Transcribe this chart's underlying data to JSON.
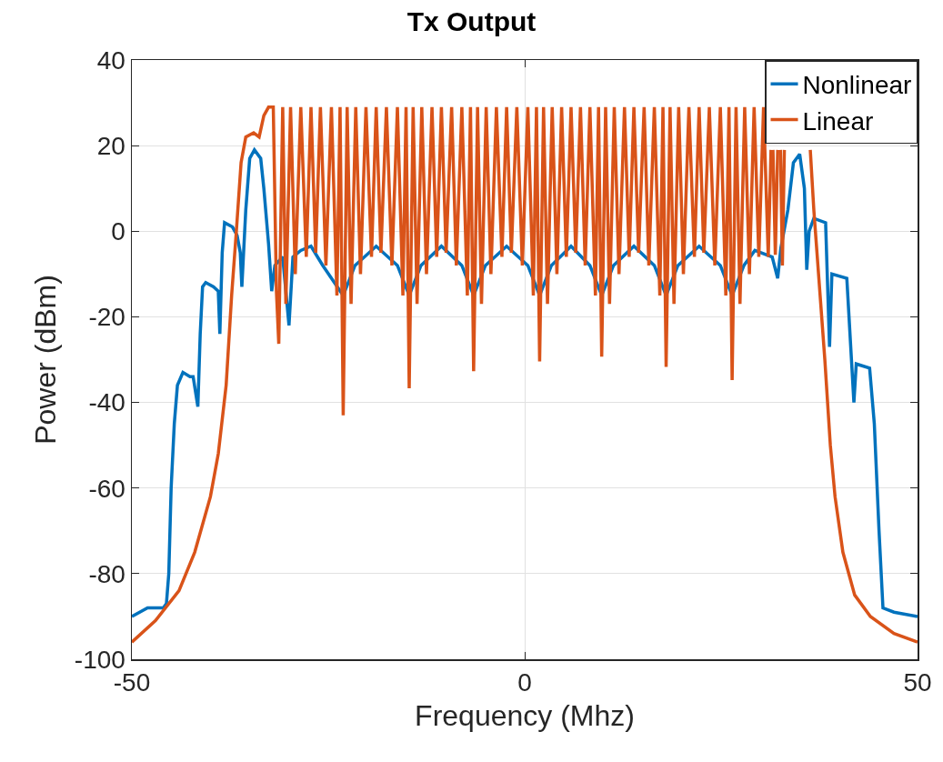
{
  "chart_data": {
    "type": "line",
    "title": "Tx Output",
    "xlabel": "Frequency (Mhz)",
    "ylabel": "Power (dBm)",
    "xlim": [
      -50,
      50
    ],
    "xticks": [
      -50,
      0,
      50
    ],
    "ylim": [
      -100,
      40
    ],
    "yticks": [
      -100,
      -80,
      -60,
      -40,
      -20,
      0,
      20,
      40
    ],
    "grid": true,
    "legend": "top right",
    "marker": "none",
    "line_style": "solid",
    "series": [
      {
        "name": "Nonlinear",
        "color": "#0072bd",
        "x": [
          -50,
          -48,
          -46,
          -45.6,
          -45.3,
          -45,
          -44.6,
          -44.2,
          -43.5,
          -42.6,
          -42.2,
          -41.6,
          -41.3,
          -41,
          -40.6,
          -39.6,
          -39,
          -38.8,
          -38.5,
          -38.2,
          -37.2,
          -36.6,
          -36.2,
          -36,
          -35.5,
          -35,
          -34.4,
          -33.6,
          -33.2,
          -32.6,
          -32.2,
          -31.8,
          -30.8,
          -30,
          -29.5,
          -28.5,
          -27.2,
          -25.7,
          -23.1,
          -21.6,
          -18.9,
          -16.2,
          -14.7,
          -13.2,
          -10.6,
          -8,
          -6.5,
          -5,
          -2.3,
          0.4,
          1.9,
          3.4,
          5.9,
          8.3,
          9.8,
          11.3,
          13.9,
          16.5,
          18,
          19.5,
          22.2,
          24.9,
          26.4,
          27.9,
          29.3,
          31.5,
          32.2,
          32.6,
          33.5,
          34.2,
          35,
          35.6,
          35.9,
          36.2,
          36.8,
          38.3,
          38.8,
          39.1,
          41,
          41.9,
          42.2,
          43.9,
          44.5,
          45.1,
          45.6,
          47,
          50
        ],
        "values": [
          -90,
          -88,
          -88,
          -87,
          -80,
          -60,
          -45,
          -36,
          -33,
          -34,
          -34,
          -41,
          -24,
          -13,
          -12,
          -13,
          -14,
          -24,
          -5,
          2,
          1,
          -1,
          -5,
          -13,
          5,
          17,
          19,
          17,
          10,
          -3,
          -14,
          -8,
          -6,
          -22,
          -6,
          -4.5,
          -3.5,
          -8,
          -15,
          -8,
          -3.5,
          -8,
          -15,
          -8,
          -3.5,
          -8,
          -15,
          -8,
          -3.5,
          -8,
          -15,
          -8,
          -3.5,
          -8,
          -15,
          -8,
          -3.5,
          -8,
          -15,
          -8,
          -3.5,
          -8,
          -15,
          -8,
          -4.5,
          -6,
          -11,
          -4,
          5,
          16,
          18,
          10,
          -9,
          0,
          3,
          2,
          -27,
          -10,
          -11,
          -40,
          -31,
          -32,
          -45,
          -70,
          -88,
          -89,
          -90
        ]
      },
      {
        "name": "Linear",
        "color": "#d95319",
        "x": [
          -50,
          -47,
          -44,
          -42,
          -40,
          -39,
          -38,
          -37.3,
          -36.7,
          -36.1,
          -35.5,
          -34.5,
          -33.8,
          -33.2,
          -32.6,
          -32,
          -31.6,
          -31.3,
          -30.8,
          -30.4,
          -29.8,
          -29.2,
          -28.5,
          -27.8,
          -27.2,
          -26.6,
          -26,
          -25.3,
          -24.6,
          -23.9,
          -23.5,
          -23.1,
          -22.6,
          -22.1,
          -21.5,
          -20.9,
          -20.2,
          -19.5,
          -18.9,
          -18.3,
          -17.6,
          -16.9,
          -16.2,
          -15.5,
          -15.1,
          -14.7,
          -14.2,
          -13.7,
          -13.1,
          -12.5,
          -11.8,
          -11.2,
          -10.6,
          -10,
          -9.3,
          -8.7,
          -8,
          -7.3,
          -6.9,
          -6.5,
          -6,
          -5.5,
          -4.9,
          -4.3,
          -3.6,
          -2.9,
          -2.3,
          -1.7,
          -1,
          -0.3,
          0.4,
          1.1,
          1.5,
          1.9,
          2.4,
          2.9,
          3.5,
          4.1,
          4.7,
          5.3,
          5.9,
          6.5,
          7.1,
          7.7,
          8.3,
          9,
          9.4,
          9.8,
          10.3,
          10.8,
          11.4,
          12,
          12.7,
          13.3,
          13.9,
          14.5,
          15.2,
          15.8,
          16.5,
          17.2,
          17.6,
          18,
          18.5,
          19,
          19.6,
          20.2,
          20.9,
          21.6,
          22.2,
          22.8,
          23.5,
          24.2,
          24.9,
          25.6,
          26,
          26.4,
          26.9,
          27.4,
          28,
          28.6,
          29.2,
          29.8,
          30.4,
          31,
          31.35,
          31.45,
          31.6,
          31.9,
          32.2,
          32.3,
          32.55,
          32.8,
          33.05,
          34,
          36.35,
          36.8,
          37.4,
          38.2,
          38.9,
          39.5,
          40.5,
          42,
          44,
          47,
          50
        ],
        "values": [
          -96,
          -91,
          -84,
          -75,
          -62,
          -52,
          -36,
          -15,
          0,
          16,
          22,
          23,
          22,
          27,
          29,
          29,
          -14,
          -26.3,
          29,
          -17,
          29,
          -10,
          29,
          -6,
          29,
          -5,
          29,
          -8,
          29,
          -15,
          29,
          -43,
          29,
          -17,
          29,
          -10,
          29,
          -6,
          29,
          -5,
          29,
          -8,
          29,
          -15,
          29,
          -36.7,
          29,
          -17,
          29,
          -10,
          29,
          -6,
          29,
          -5,
          29,
          -8,
          29,
          -15,
          29,
          -32.7,
          29,
          -17,
          29,
          -10,
          29,
          -6,
          29,
          -5,
          29,
          -8,
          29,
          -15,
          29,
          -30.4,
          29,
          -17,
          29,
          -10,
          29,
          -6,
          29,
          -5,
          29,
          -8,
          29,
          -15,
          29,
          -29.3,
          29,
          -17,
          29,
          -10,
          29,
          -6,
          29,
          -5,
          29,
          -8,
          29,
          -15,
          29,
          -31.7,
          29,
          -17,
          29,
          -10,
          29,
          -6,
          29,
          -5,
          29,
          -8,
          29,
          -15,
          29,
          -34.8,
          29,
          -17,
          29,
          -10,
          29,
          -6,
          29,
          -6,
          19,
          null,
          19,
          -5.5,
          19,
          null,
          19,
          -8,
          19,
          null,
          19,
          5,
          -10,
          -30,
          -50,
          -62,
          -75,
          -85,
          -90,
          -94,
          -96
        ]
      }
    ]
  }
}
